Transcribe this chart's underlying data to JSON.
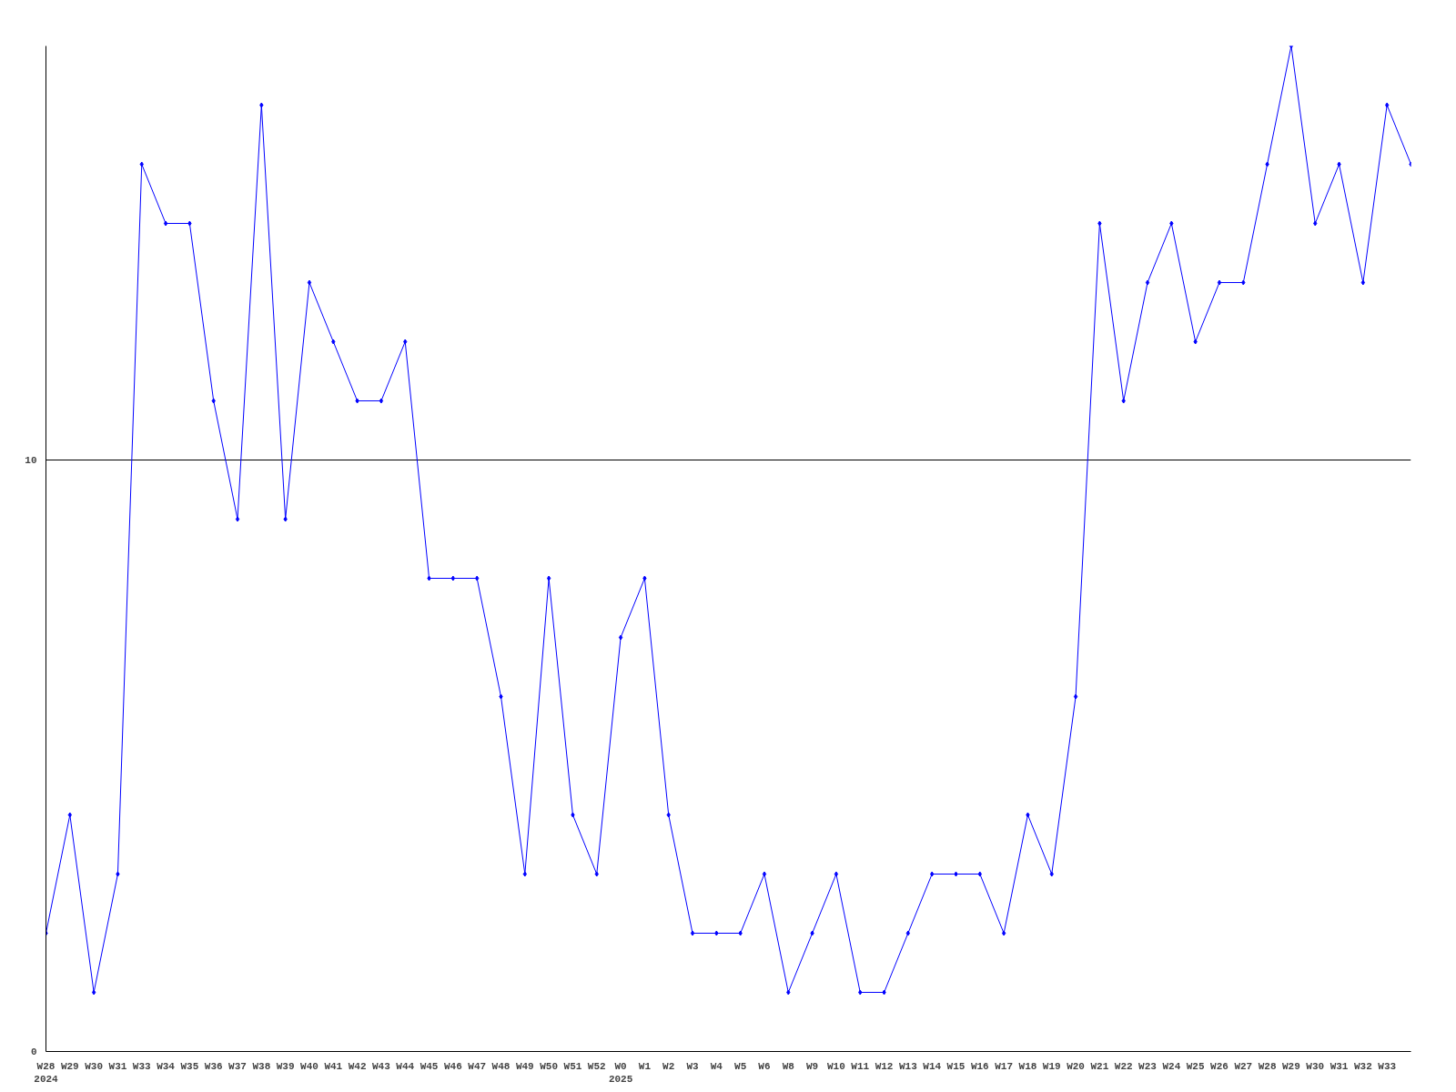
{
  "chart_data": {
    "type": "line",
    "categories": [
      "W28\n2024",
      "W29",
      "W30",
      "W31",
      "W33",
      "W34",
      "W35",
      "W36",
      "W37",
      "W38",
      "W39",
      "W40",
      "W41",
      "W42",
      "W43",
      "W44",
      "W45",
      "W46",
      "W47",
      "W48",
      "W49",
      "W50",
      "W51",
      "W52",
      "W0\n2025",
      "W1",
      "W2",
      "W3",
      "W4",
      "W5",
      "W6",
      "W8",
      "W9",
      "W10",
      "W11",
      "W12",
      "W13",
      "W14",
      "W15",
      "W16",
      "W17",
      "W18",
      "W19",
      "W20",
      "W21",
      "W22",
      "W23",
      "W24",
      "W25",
      "W26",
      "W27",
      "W28",
      "W29",
      "W30",
      "W31",
      "W32",
      "W33",
      null
    ],
    "series": [
      {
        "color": "#0000ff",
        "values": [
          2,
          4,
          1,
          3,
          15,
          14,
          14,
          11,
          9,
          16,
          9,
          13,
          12,
          11,
          11,
          12,
          8,
          8,
          8,
          6,
          3,
          8,
          4,
          3,
          7,
          8,
          4,
          2,
          2,
          2,
          3,
          1,
          2,
          3,
          1,
          1,
          2,
          3,
          3,
          3,
          2,
          4,
          3,
          6,
          14,
          11,
          13,
          14,
          12,
          13,
          13,
          15,
          17,
          14,
          15,
          13,
          16,
          15
        ]
      }
    ],
    "ylim": [
      0,
      17
    ],
    "yticks": [
      0,
      10
    ],
    "grid": "y",
    "marker": "diamond",
    "line_style": "solid"
  }
}
